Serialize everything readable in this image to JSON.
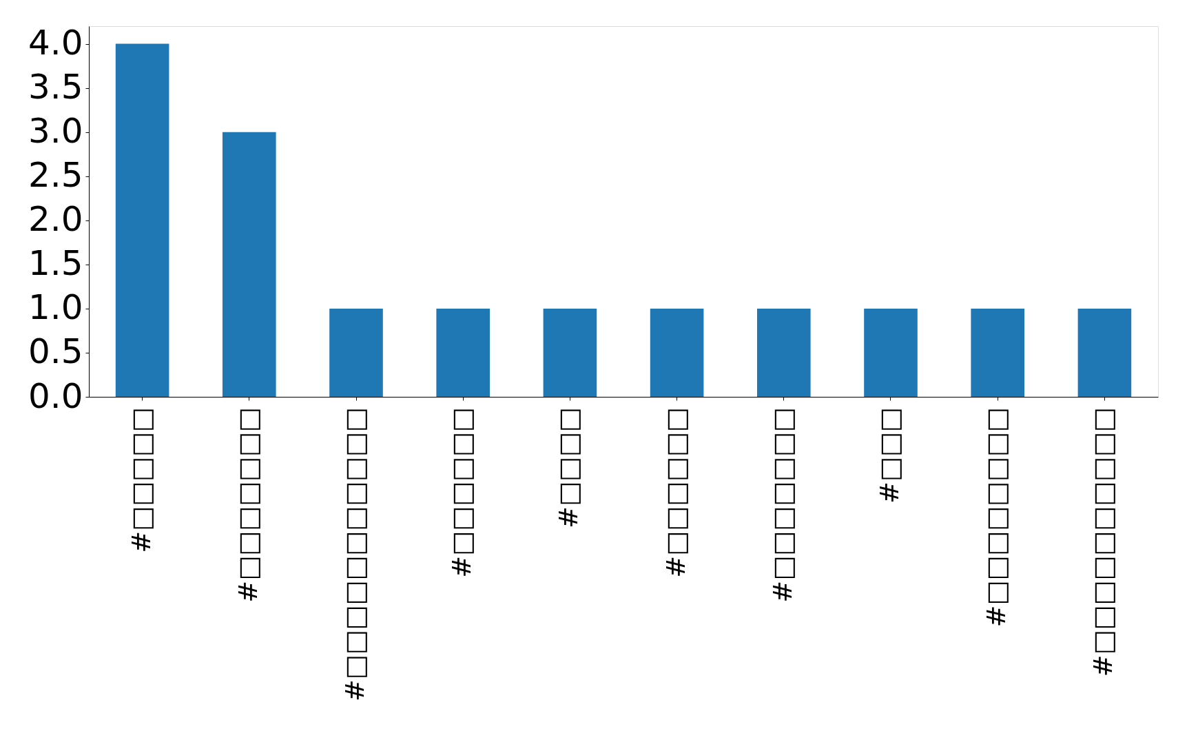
{
  "chart_data": {
    "type": "bar",
    "categories": [
      "#□□□□□",
      "#□□□□□□□",
      "#□□□□□□□□□□□",
      "#□□□□□□",
      "#□□□□",
      "#□□□□□□",
      "#□□□□□□□",
      "#□□□",
      "#□□□□□□□□",
      "#□□□□□□□□□□"
    ],
    "values": [
      4,
      3,
      1,
      1,
      1,
      1,
      1,
      1,
      1,
      1
    ],
    "color": "#1f77b4",
    "ylim": [
      0,
      4.2
    ],
    "yticks": [
      {
        "value": 0,
        "label": "0.0"
      },
      {
        "value": 0.5,
        "label": "0.5"
      },
      {
        "value": 1,
        "label": "1.0"
      },
      {
        "value": 1.5,
        "label": "1.5"
      },
      {
        "value": 2,
        "label": "2.0"
      },
      {
        "value": 2.5,
        "label": "2.5"
      },
      {
        "value": 3,
        "label": "3.0"
      },
      {
        "value": 3.5,
        "label": "3.5"
      },
      {
        "value": 4,
        "label": "4.0"
      }
    ],
    "grid": false
  }
}
